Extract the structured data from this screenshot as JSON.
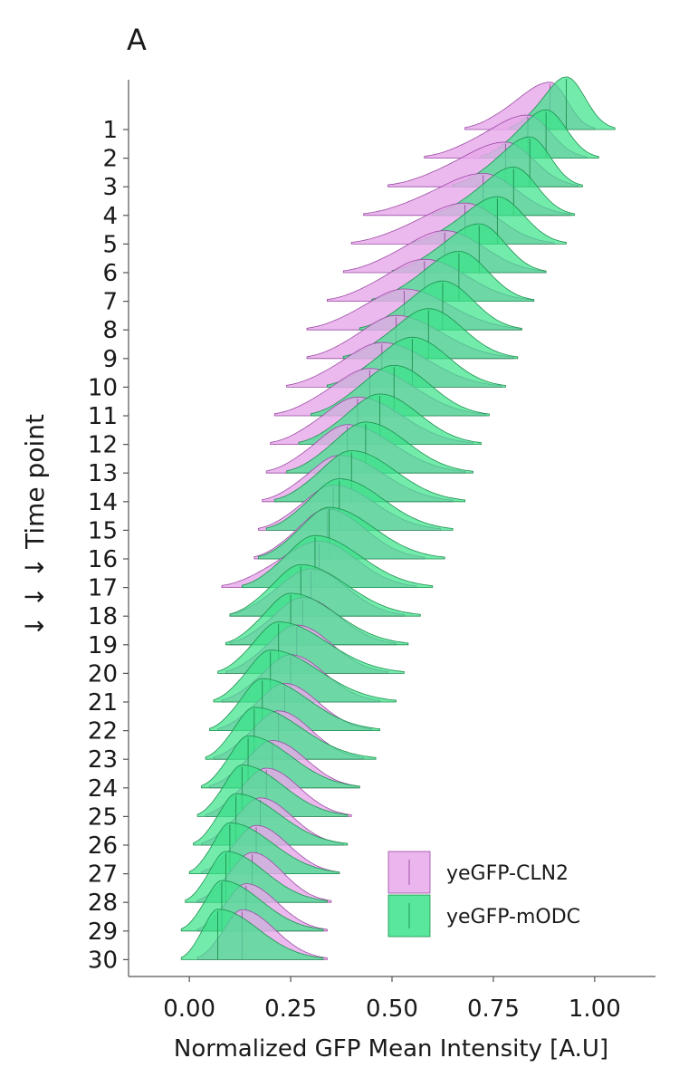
{
  "chart_data": {
    "type": "ridgeline",
    "panel_label": "A",
    "xlabel": "Normalized GFP Mean Intensity [A.U]",
    "ylabel": "↓ ↓ ↓ Time point",
    "xlim": [
      -0.15,
      1.15
    ],
    "xticks": [
      {
        "value": 0.0,
        "label": "0.00"
      },
      {
        "value": 0.25,
        "label": "0.25"
      },
      {
        "value": 0.5,
        "label": "0.50"
      },
      {
        "value": 0.75,
        "label": "0.75"
      },
      {
        "value": 1.0,
        "label": "1.00"
      }
    ],
    "time_points": [
      "1",
      "2",
      "3",
      "4",
      "5",
      "6",
      "7",
      "8",
      "9",
      "10",
      "11",
      "12",
      "13",
      "14",
      "15",
      "16",
      "17",
      "18",
      "19",
      "20",
      "21",
      "22",
      "23",
      "24",
      "25",
      "26",
      "27",
      "28",
      "29",
      "30"
    ],
    "legend": {
      "position": "bottom-right"
    },
    "colors": {
      "cln2_fill": "#e7a9ea",
      "cln2_stroke": "#9b4aa3",
      "modc_fill": "#3be38a",
      "modc_stroke": "#1f8f4e",
      "axis": "#555555"
    },
    "series": [
      {
        "name": "yeGFP-CLN2",
        "median": [
          0.89,
          0.835,
          0.78,
          0.725,
          0.68,
          0.63,
          0.58,
          0.53,
          0.51,
          0.475,
          0.445,
          0.415,
          0.39,
          0.37,
          0.355,
          0.34,
          0.32,
          0.3,
          0.28,
          0.265,
          0.25,
          0.235,
          0.22,
          0.205,
          0.19,
          0.175,
          0.165,
          0.155,
          0.14,
          0.13
        ],
        "range_min": [
          0.68,
          0.58,
          0.49,
          0.43,
          0.4,
          0.38,
          0.34,
          0.29,
          0.29,
          0.24,
          0.21,
          0.2,
          0.19,
          0.18,
          0.17,
          0.16,
          0.08,
          0.1,
          0.1,
          0.09,
          0.08,
          0.07,
          0.06,
          0.05,
          0.04,
          0.03,
          0.03,
          0.02,
          0.02,
          0.02
        ],
        "range_max": [
          1.0,
          0.98,
          0.96,
          0.94,
          0.9,
          0.88,
          0.85,
          0.82,
          0.8,
          0.77,
          0.73,
          0.7,
          0.68,
          0.65,
          0.62,
          0.58,
          0.56,
          0.53,
          0.51,
          0.49,
          0.47,
          0.45,
          0.43,
          0.42,
          0.4,
          0.38,
          0.37,
          0.35,
          0.34,
          0.34
        ],
        "peak_height": [
          0.9,
          0.82,
          0.85,
          0.8,
          0.78,
          0.8,
          0.8,
          0.78,
          0.82,
          0.85,
          0.9,
          0.9,
          0.92,
          0.88,
          0.86,
          0.95,
          0.88,
          0.9,
          0.9,
          0.92,
          0.9,
          0.9,
          0.92,
          0.9,
          0.92,
          0.9,
          0.92,
          0.95,
          0.9,
          0.95
        ]
      },
      {
        "name": "yeGFP-mODC",
        "median": [
          0.93,
          0.88,
          0.84,
          0.8,
          0.76,
          0.715,
          0.665,
          0.625,
          0.59,
          0.55,
          0.505,
          0.47,
          0.435,
          0.4,
          0.37,
          0.345,
          0.31,
          0.275,
          0.25,
          0.22,
          0.2,
          0.18,
          0.16,
          0.145,
          0.13,
          0.115,
          0.1,
          0.09,
          0.08,
          0.07
        ],
        "range_min": [
          0.79,
          0.72,
          0.65,
          0.6,
          0.55,
          0.5,
          0.45,
          0.42,
          0.38,
          0.34,
          0.3,
          0.27,
          0.24,
          0.21,
          0.19,
          0.17,
          0.13,
          0.1,
          0.09,
          0.07,
          0.06,
          0.05,
          0.04,
          0.03,
          0.02,
          0.01,
          0.0,
          -0.01,
          -0.02,
          -0.02
        ],
        "range_max": [
          1.05,
          1.01,
          0.97,
          0.95,
          0.93,
          0.88,
          0.85,
          0.82,
          0.81,
          0.78,
          0.74,
          0.72,
          0.7,
          0.68,
          0.65,
          0.63,
          0.6,
          0.57,
          0.54,
          0.53,
          0.51,
          0.47,
          0.46,
          0.42,
          0.39,
          0.39,
          0.37,
          0.34,
          0.33,
          0.33
        ],
        "peak_height": [
          1.0,
          0.92,
          0.95,
          0.92,
          0.9,
          0.93,
          0.95,
          0.93,
          0.95,
          0.95,
          0.96,
          0.96,
          0.97,
          0.97,
          0.98,
          0.98,
          0.99,
          0.98,
          0.98,
          0.98,
          0.99,
          0.99,
          0.99,
          0.99,
          0.98,
          0.98,
          0.97,
          0.97,
          0.96,
          0.96
        ]
      }
    ]
  }
}
